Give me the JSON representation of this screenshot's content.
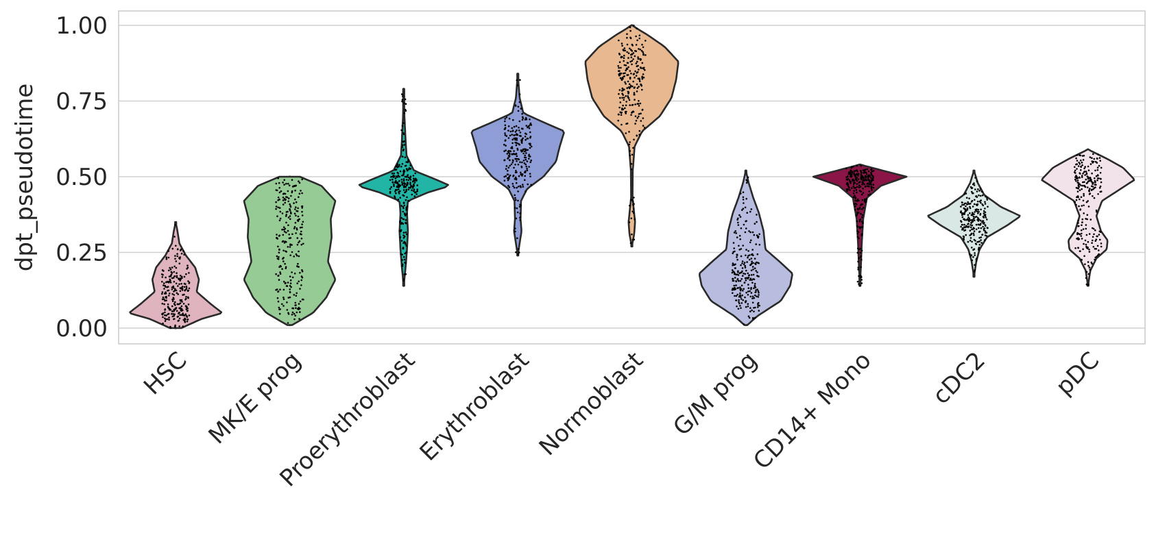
{
  "chart_data": {
    "type": "violin",
    "title": "",
    "xlabel": "",
    "ylabel": "dpt_pseudotime",
    "ylim": [
      -0.05,
      1.05
    ],
    "yticks": [
      "0.00",
      "0.25",
      "0.50",
      "0.75",
      "1.00"
    ],
    "ytick_values": [
      0,
      0.25,
      0.5,
      0.75,
      1.0
    ],
    "grid": true,
    "categories": [
      "HSC",
      "MK/E prog",
      "Proerythroblast",
      "Erythroblast",
      "Normoblast",
      "G/M prog",
      "CD14+ Mono",
      "cDC2",
      "pDC"
    ],
    "series": [
      {
        "category": "HSC",
        "color": "#e0b4bf",
        "min": 0.0,
        "max": 0.35,
        "density": [
          [
            0.0,
            0.12
          ],
          [
            0.03,
            0.55
          ],
          [
            0.05,
            1.0
          ],
          [
            0.08,
            0.75
          ],
          [
            0.12,
            0.45
          ],
          [
            0.16,
            0.5
          ],
          [
            0.2,
            0.42
          ],
          [
            0.24,
            0.22
          ],
          [
            0.28,
            0.08
          ],
          [
            0.32,
            0.04
          ],
          [
            0.35,
            0.0
          ]
        ]
      },
      {
        "category": "MK/E prog",
        "color": "#96cb96",
        "min": 0.01,
        "max": 0.5,
        "density": [
          [
            0.01,
            0.05
          ],
          [
            0.05,
            0.5
          ],
          [
            0.1,
            0.78
          ],
          [
            0.16,
            0.98
          ],
          [
            0.22,
            0.82
          ],
          [
            0.3,
            0.9
          ],
          [
            0.36,
            0.88
          ],
          [
            0.42,
            0.98
          ],
          [
            0.47,
            0.68
          ],
          [
            0.5,
            0.22
          ]
        ]
      },
      {
        "category": "Proerythroblast",
        "color": "#22b5a6",
        "min": 0.14,
        "max": 0.79,
        "density": [
          [
            0.14,
            0.0
          ],
          [
            0.2,
            0.04
          ],
          [
            0.26,
            0.07
          ],
          [
            0.32,
            0.09
          ],
          [
            0.38,
            0.07
          ],
          [
            0.42,
            0.09
          ],
          [
            0.45,
            0.55
          ],
          [
            0.47,
            1.0
          ],
          [
            0.49,
            0.7
          ],
          [
            0.52,
            0.22
          ],
          [
            0.57,
            0.06
          ],
          [
            0.62,
            0.04
          ],
          [
            0.7,
            0.015
          ],
          [
            0.79,
            0.0
          ]
        ]
      },
      {
        "category": "Erythroblast",
        "color": "#8e9dd5",
        "min": 0.24,
        "max": 0.84,
        "density": [
          [
            0.24,
            0.0
          ],
          [
            0.28,
            0.04
          ],
          [
            0.32,
            0.08
          ],
          [
            0.36,
            0.06
          ],
          [
            0.42,
            0.07
          ],
          [
            0.46,
            0.2
          ],
          [
            0.5,
            0.55
          ],
          [
            0.55,
            0.82
          ],
          [
            0.6,
            0.9
          ],
          [
            0.65,
            1.0
          ],
          [
            0.68,
            0.55
          ],
          [
            0.71,
            0.12
          ],
          [
            0.76,
            0.04
          ],
          [
            0.84,
            0.0
          ]
        ]
      },
      {
        "category": "Normoblast",
        "color": "#e8b990",
        "min": 0.27,
        "max": 1.0,
        "density": [
          [
            0.27,
            0.0
          ],
          [
            0.31,
            0.05
          ],
          [
            0.35,
            0.07
          ],
          [
            0.38,
            0.05
          ],
          [
            0.43,
            0.015
          ],
          [
            0.52,
            0.02
          ],
          [
            0.6,
            0.06
          ],
          [
            0.65,
            0.22
          ],
          [
            0.7,
            0.6
          ],
          [
            0.76,
            0.85
          ],
          [
            0.82,
            0.95
          ],
          [
            0.88,
            1.0
          ],
          [
            0.93,
            0.7
          ],
          [
            0.97,
            0.32
          ],
          [
            1.0,
            0.0
          ]
        ]
      },
      {
        "category": "G/M prog",
        "color": "#b8bde0",
        "min": 0.01,
        "max": 0.52,
        "density": [
          [
            0.01,
            0.03
          ],
          [
            0.04,
            0.25
          ],
          [
            0.09,
            0.75
          ],
          [
            0.14,
            0.95
          ],
          [
            0.18,
            1.0
          ],
          [
            0.22,
            0.72
          ],
          [
            0.26,
            0.42
          ],
          [
            0.32,
            0.38
          ],
          [
            0.38,
            0.28
          ],
          [
            0.43,
            0.16
          ],
          [
            0.48,
            0.06
          ],
          [
            0.52,
            0.0
          ]
        ]
      },
      {
        "category": "CD14+ Mono",
        "color": "#8a1546",
        "min": 0.14,
        "max": 0.54,
        "density": [
          [
            0.14,
            0.0
          ],
          [
            0.2,
            0.02
          ],
          [
            0.28,
            0.04
          ],
          [
            0.36,
            0.07
          ],
          [
            0.43,
            0.15
          ],
          [
            0.47,
            0.45
          ],
          [
            0.5,
            1.0
          ],
          [
            0.52,
            0.5
          ],
          [
            0.54,
            0.0
          ]
        ]
      },
      {
        "category": "cDC2",
        "color": "#d9e8e5",
        "min": 0.17,
        "max": 0.52,
        "density": [
          [
            0.17,
            0.0
          ],
          [
            0.22,
            0.05
          ],
          [
            0.26,
            0.12
          ],
          [
            0.3,
            0.28
          ],
          [
            0.34,
            0.72
          ],
          [
            0.37,
            1.0
          ],
          [
            0.4,
            0.58
          ],
          [
            0.44,
            0.22
          ],
          [
            0.48,
            0.08
          ],
          [
            0.52,
            0.0
          ]
        ]
      },
      {
        "category": "pDC",
        "color": "#f2e2ea",
        "min": 0.14,
        "max": 0.59,
        "density": [
          [
            0.14,
            0.0
          ],
          [
            0.19,
            0.05
          ],
          [
            0.23,
            0.18
          ],
          [
            0.26,
            0.4
          ],
          [
            0.29,
            0.42
          ],
          [
            0.32,
            0.28
          ],
          [
            0.37,
            0.18
          ],
          [
            0.42,
            0.3
          ],
          [
            0.46,
            0.7
          ],
          [
            0.49,
            1.0
          ],
          [
            0.53,
            0.75
          ],
          [
            0.56,
            0.4
          ],
          [
            0.59,
            0.0
          ]
        ]
      }
    ]
  }
}
